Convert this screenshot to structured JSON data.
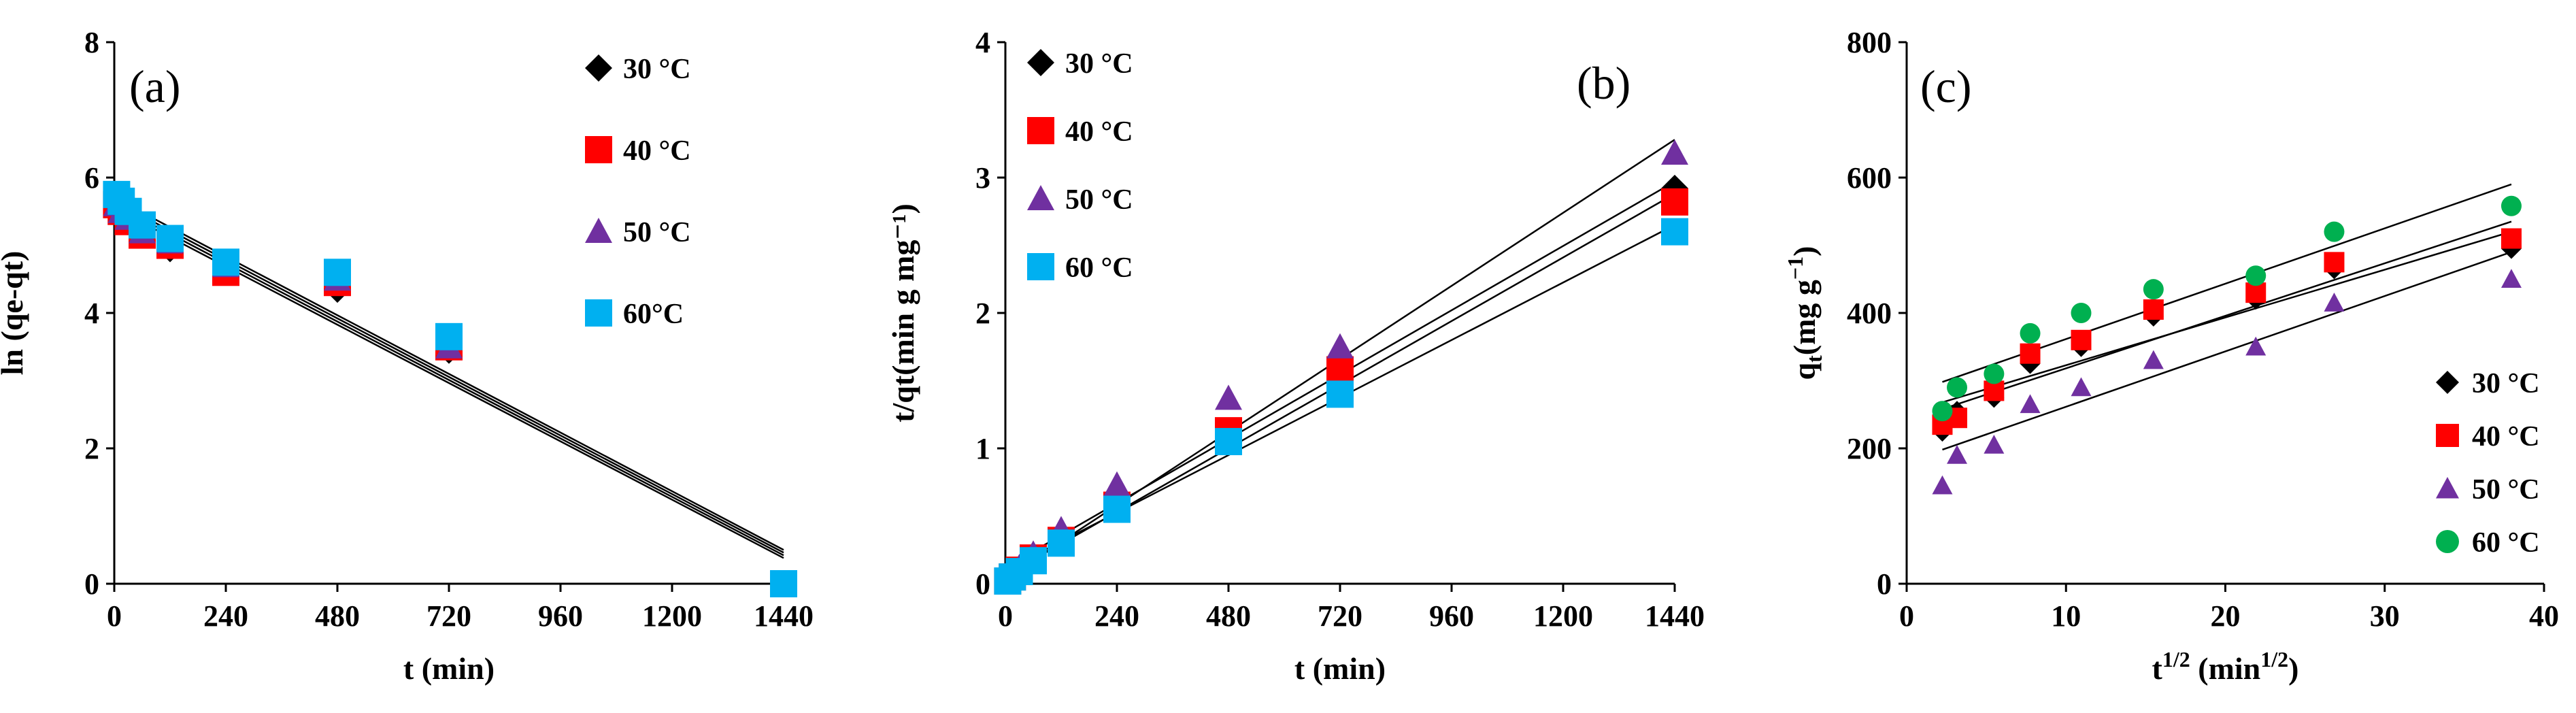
{
  "colors": {
    "t30": "#000000",
    "t40": "#ff0000",
    "t50": "#7030a0",
    "t60_a": "#00b0f0",
    "t60_c": "#00b050",
    "fitline": "#000000",
    "axis": "#000000"
  },
  "chart_data": [
    {
      "type": "scatter",
      "panel_label": "(a)",
      "title": "",
      "xlabel": "t (min)",
      "ylabel": "ln (qe-qt)",
      "xlim": [
        0,
        1440
      ],
      "ylim": [
        0,
        8
      ],
      "xticks": [
        "0",
        "240",
        "480",
        "720",
        "960",
        "1200",
        "1440"
      ],
      "yticks": [
        "0",
        "2",
        "4",
        "6",
        "8"
      ],
      "legend_position": "top-right",
      "series": [
        {
          "name": "30 °C",
          "marker": "diamond",
          "color": "#000000",
          "x": [
            5,
            15,
            30,
            60,
            120,
            240,
            480,
            720,
            1440
          ],
          "y": [
            5.55,
            5.45,
            5.35,
            5.15,
            4.95,
            4.65,
            4.35,
            3.45,
            0
          ],
          "fit": [
            [
              0,
              5.55
            ],
            [
              1440,
              0.38
            ]
          ]
        },
        {
          "name": "40 °C",
          "marker": "square",
          "color": "#ff0000",
          "x": [
            5,
            15,
            30,
            60,
            120,
            240,
            480,
            720,
            1440
          ],
          "y": [
            5.6,
            5.5,
            5.35,
            5.15,
            5.0,
            4.6,
            4.45,
            3.5,
            0
          ],
          "fit": [
            [
              0,
              5.6
            ],
            [
              1440,
              0.42
            ]
          ]
        },
        {
          "name": "50 °C",
          "marker": "triangle",
          "color": "#7030a0",
          "x": [
            5,
            15,
            30,
            60,
            120,
            240,
            480,
            720,
            1440
          ],
          "y": [
            5.6,
            5.5,
            5.4,
            5.2,
            5.05,
            4.7,
            4.5,
            3.5,
            0
          ],
          "fit": [
            [
              0,
              5.65
            ],
            [
              1440,
              0.46
            ]
          ]
        },
        {
          "name": "60°C",
          "marker": "square",
          "color": "#00b0f0",
          "x": [
            5,
            15,
            30,
            60,
            120,
            240,
            480,
            720,
            1440
          ],
          "y": [
            5.75,
            5.65,
            5.5,
            5.3,
            5.1,
            4.75,
            4.6,
            3.65,
            0
          ],
          "fit": [
            [
              0,
              5.7
            ],
            [
              1440,
              0.5
            ]
          ]
        }
      ]
    },
    {
      "type": "scatter",
      "panel_label": "(b)",
      "title": "",
      "xlabel": "t (min)",
      "ylabel": "t/qt(min g mg⁻¹)",
      "xlim": [
        0,
        1440
      ],
      "ylim": [
        0,
        4
      ],
      "xticks": [
        "0",
        "240",
        "480",
        "720",
        "960",
        "1200",
        "1440"
      ],
      "yticks": [
        "0",
        "1",
        "2",
        "3",
        "4"
      ],
      "legend_position": "top-left",
      "series": [
        {
          "name": "30 °C",
          "marker": "diamond",
          "color": "#000000",
          "x": [
            5,
            15,
            30,
            60,
            120,
            240,
            480,
            720,
            1440
          ],
          "y": [
            0.02,
            0.05,
            0.1,
            0.2,
            0.33,
            0.6,
            1.1,
            1.6,
            2.92
          ],
          "fit": [
            [
              0,
              0.12
            ],
            [
              1440,
              2.97
            ]
          ]
        },
        {
          "name": "40 °C",
          "marker": "square",
          "color": "#ff0000",
          "x": [
            5,
            15,
            30,
            60,
            120,
            240,
            480,
            720,
            1440
          ],
          "y": [
            0.02,
            0.05,
            0.1,
            0.19,
            0.32,
            0.58,
            1.13,
            1.58,
            2.82
          ],
          "fit": [
            [
              0,
              0.06
            ],
            [
              1440,
              2.88
            ]
          ]
        },
        {
          "name": "50 °C",
          "marker": "triangle",
          "color": "#7030a0",
          "x": [
            5,
            15,
            30,
            60,
            120,
            240,
            480,
            720,
            1440
          ],
          "y": [
            0.03,
            0.07,
            0.12,
            0.22,
            0.4,
            0.73,
            1.37,
            1.75,
            3.18
          ],
          "fit": [
            [
              0,
              0.04
            ],
            [
              1440,
              3.28
            ]
          ]
        },
        {
          "name": "60 °C",
          "marker": "square",
          "color": "#00b0f0",
          "x": [
            5,
            15,
            30,
            60,
            120,
            240,
            480,
            720,
            1440
          ],
          "y": [
            0.02,
            0.05,
            0.09,
            0.17,
            0.3,
            0.55,
            1.05,
            1.4,
            2.6
          ],
          "fit": [
            [
              0,
              0.1
            ],
            [
              1440,
              2.65
            ]
          ]
        }
      ]
    },
    {
      "type": "scatter",
      "panel_label": "(c)",
      "title": "",
      "xlabel": "t",
      "xlabel_sup": "1/2",
      "xlabel_unit": " (min",
      "xlabel_unit_sup": "1/2",
      "xlabel_close": ")",
      "ylabel": "q",
      "ylabel_sub": "t",
      "ylabel_unit": "(mg g",
      "ylabel_unit_sup": "−1",
      "ylabel_close": ")",
      "xlim": [
        0,
        40
      ],
      "ylim": [
        0,
        800
      ],
      "xticks": [
        "0",
        "10",
        "20",
        "30",
        "40"
      ],
      "yticks": [
        "0",
        "200",
        "400",
        "600",
        "800"
      ],
      "legend_position": "bottom-right",
      "series": [
        {
          "name": "30 °C",
          "marker": "diamond",
          "color": "#000000",
          "x": [
            2.24,
            3.16,
            5.48,
            7.75,
            10.95,
            15.49,
            21.91,
            26.83,
            37.95
          ],
          "y": [
            225,
            255,
            275,
            325,
            350,
            395,
            420,
            465,
            495
          ],
          "fit": [
            [
              2.24,
              268
            ],
            [
              37.95,
              520
            ]
          ]
        },
        {
          "name": "40 °C",
          "marker": "square",
          "color": "#ff0000",
          "x": [
            2.24,
            3.16,
            5.48,
            7.75,
            10.95,
            15.49,
            21.91,
            26.83,
            37.95
          ],
          "y": [
            235,
            245,
            285,
            340,
            360,
            405,
            430,
            475,
            510
          ],
          "fit": [
            [
              2.24,
              258
            ],
            [
              37.95,
              535
            ]
          ]
        },
        {
          "name": "50 °C",
          "marker": "triangle",
          "color": "#7030a0",
          "x": [
            2.24,
            3.16,
            5.48,
            7.75,
            10.95,
            15.49,
            21.91,
            26.83,
            37.95
          ],
          "y": [
            145,
            190,
            205,
            265,
            290,
            330,
            350,
            415,
            450
          ],
          "fit": [
            [
              2.24,
              198
            ],
            [
              37.95,
              490
            ]
          ]
        },
        {
          "name": "60 °C",
          "marker": "circle",
          "color": "#00b050",
          "x": [
            2.24,
            3.16,
            5.48,
            7.75,
            10.95,
            15.49,
            21.91,
            26.83,
            37.95
          ],
          "y": [
            255,
            290,
            310,
            370,
            400,
            435,
            455,
            520,
            558
          ],
          "fit": [
            [
              2.24,
              298
            ],
            [
              37.95,
              590
            ]
          ]
        }
      ]
    }
  ]
}
